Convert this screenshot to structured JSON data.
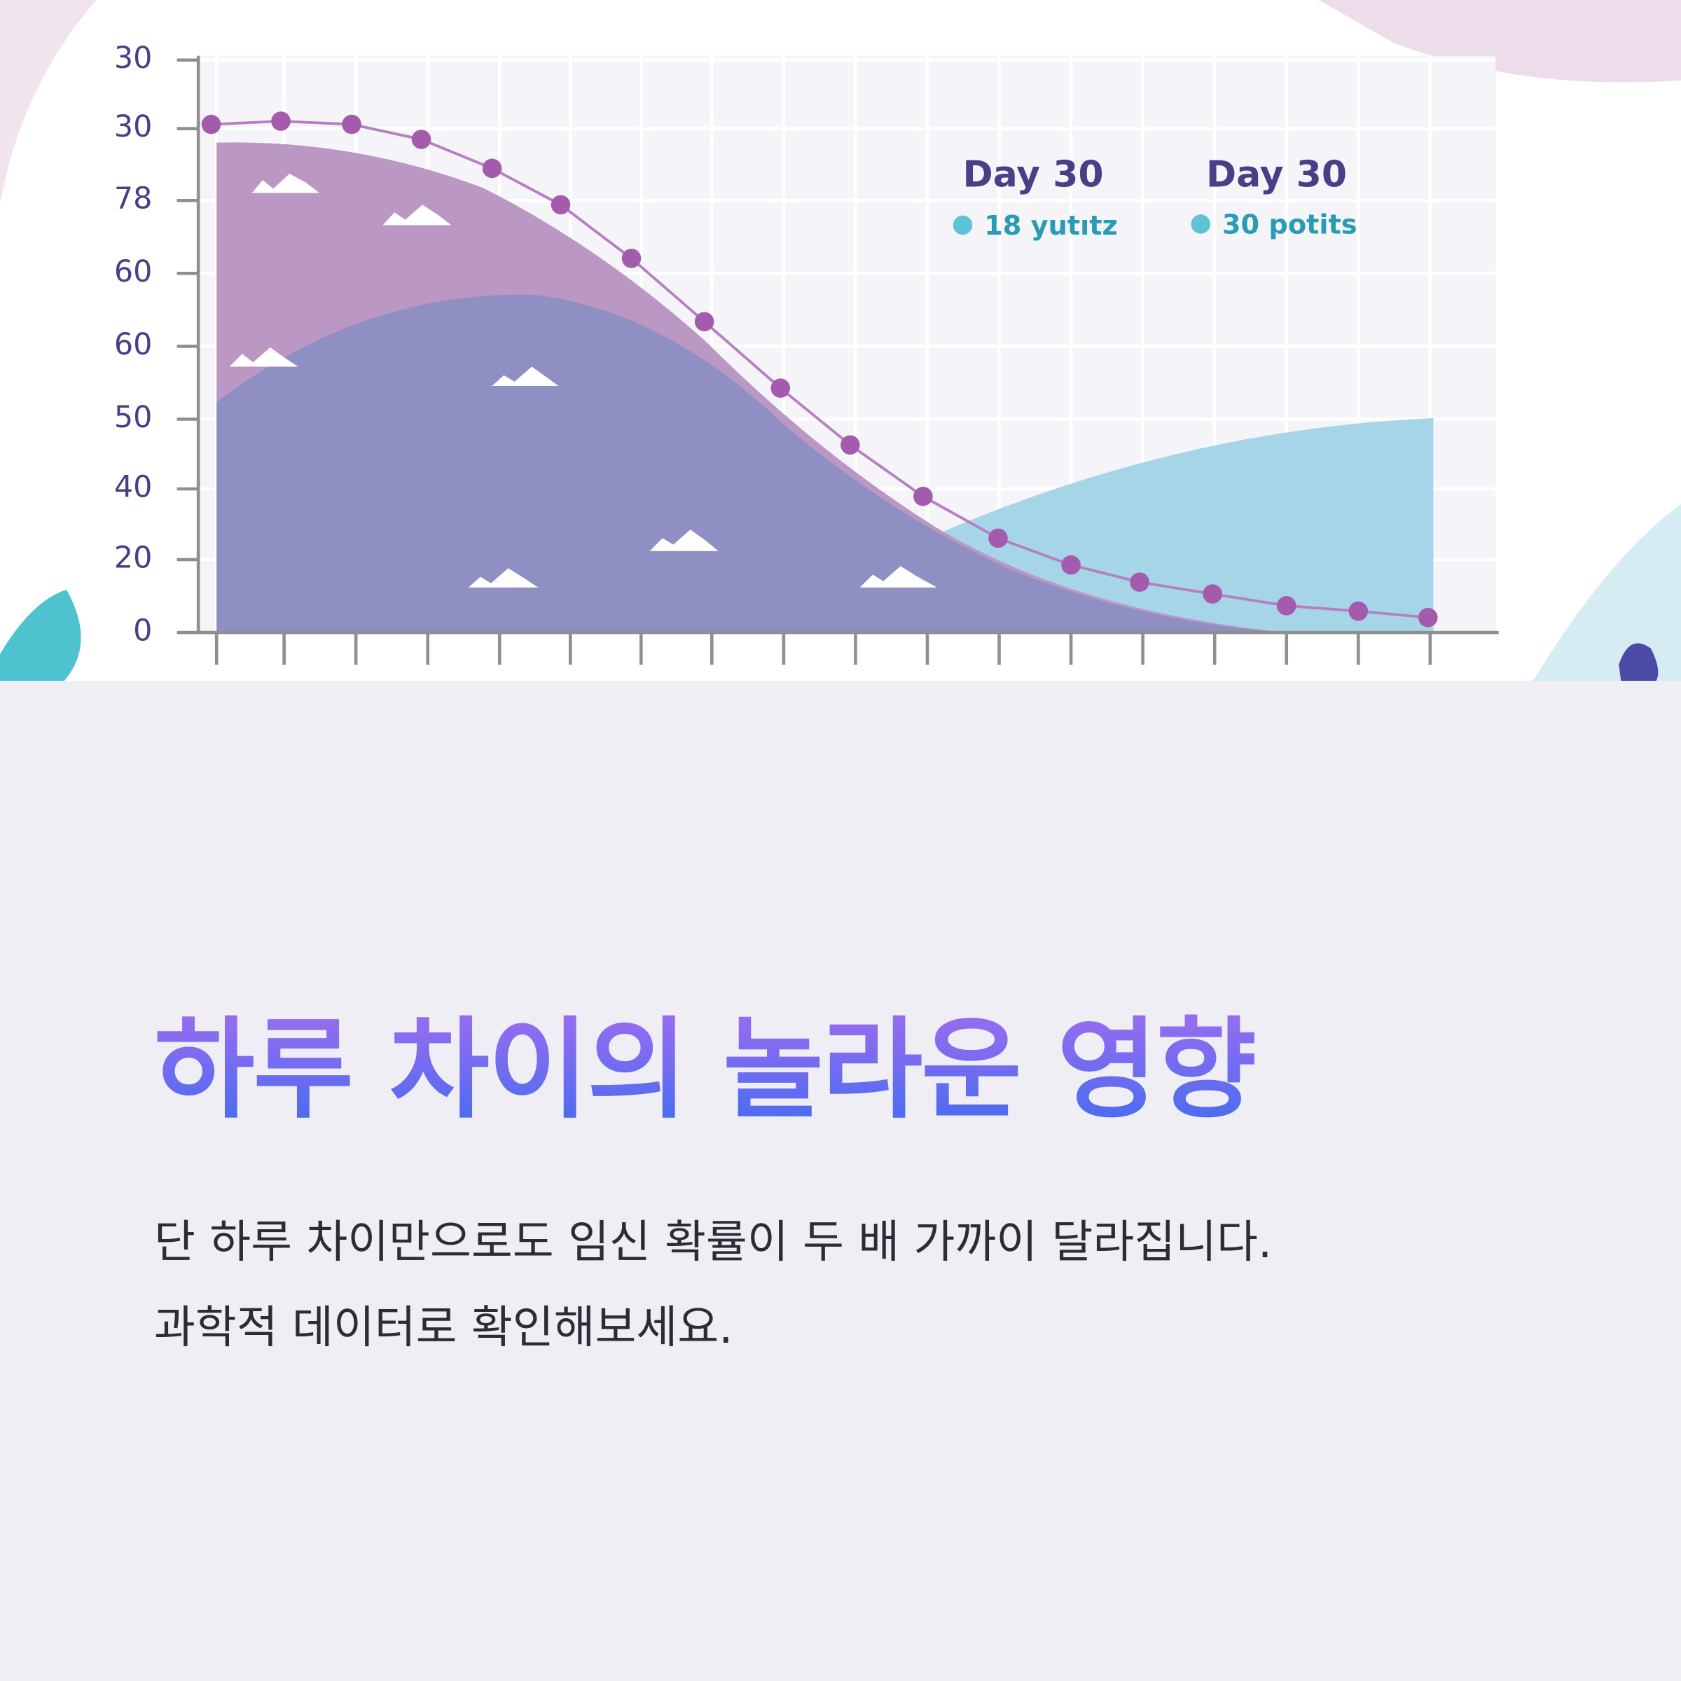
{
  "chart_image": {
    "y_axis_labels": [
      "30",
      "30",
      "78",
      "60",
      "60",
      "50",
      "40",
      "20",
      "0"
    ],
    "legend": [
      {
        "title": "Day 30",
        "label": "18 yutıtz"
      },
      {
        "title": "Day 30",
        "label": "30 potits"
      }
    ]
  },
  "heading": "하루 차이의 놀라운 영향",
  "body": [
    "단 하루 차이만으로도 임신 확률이 두 배 가까이 달라집니다.",
    "과학적 데이터로 확인해보세요."
  ]
}
